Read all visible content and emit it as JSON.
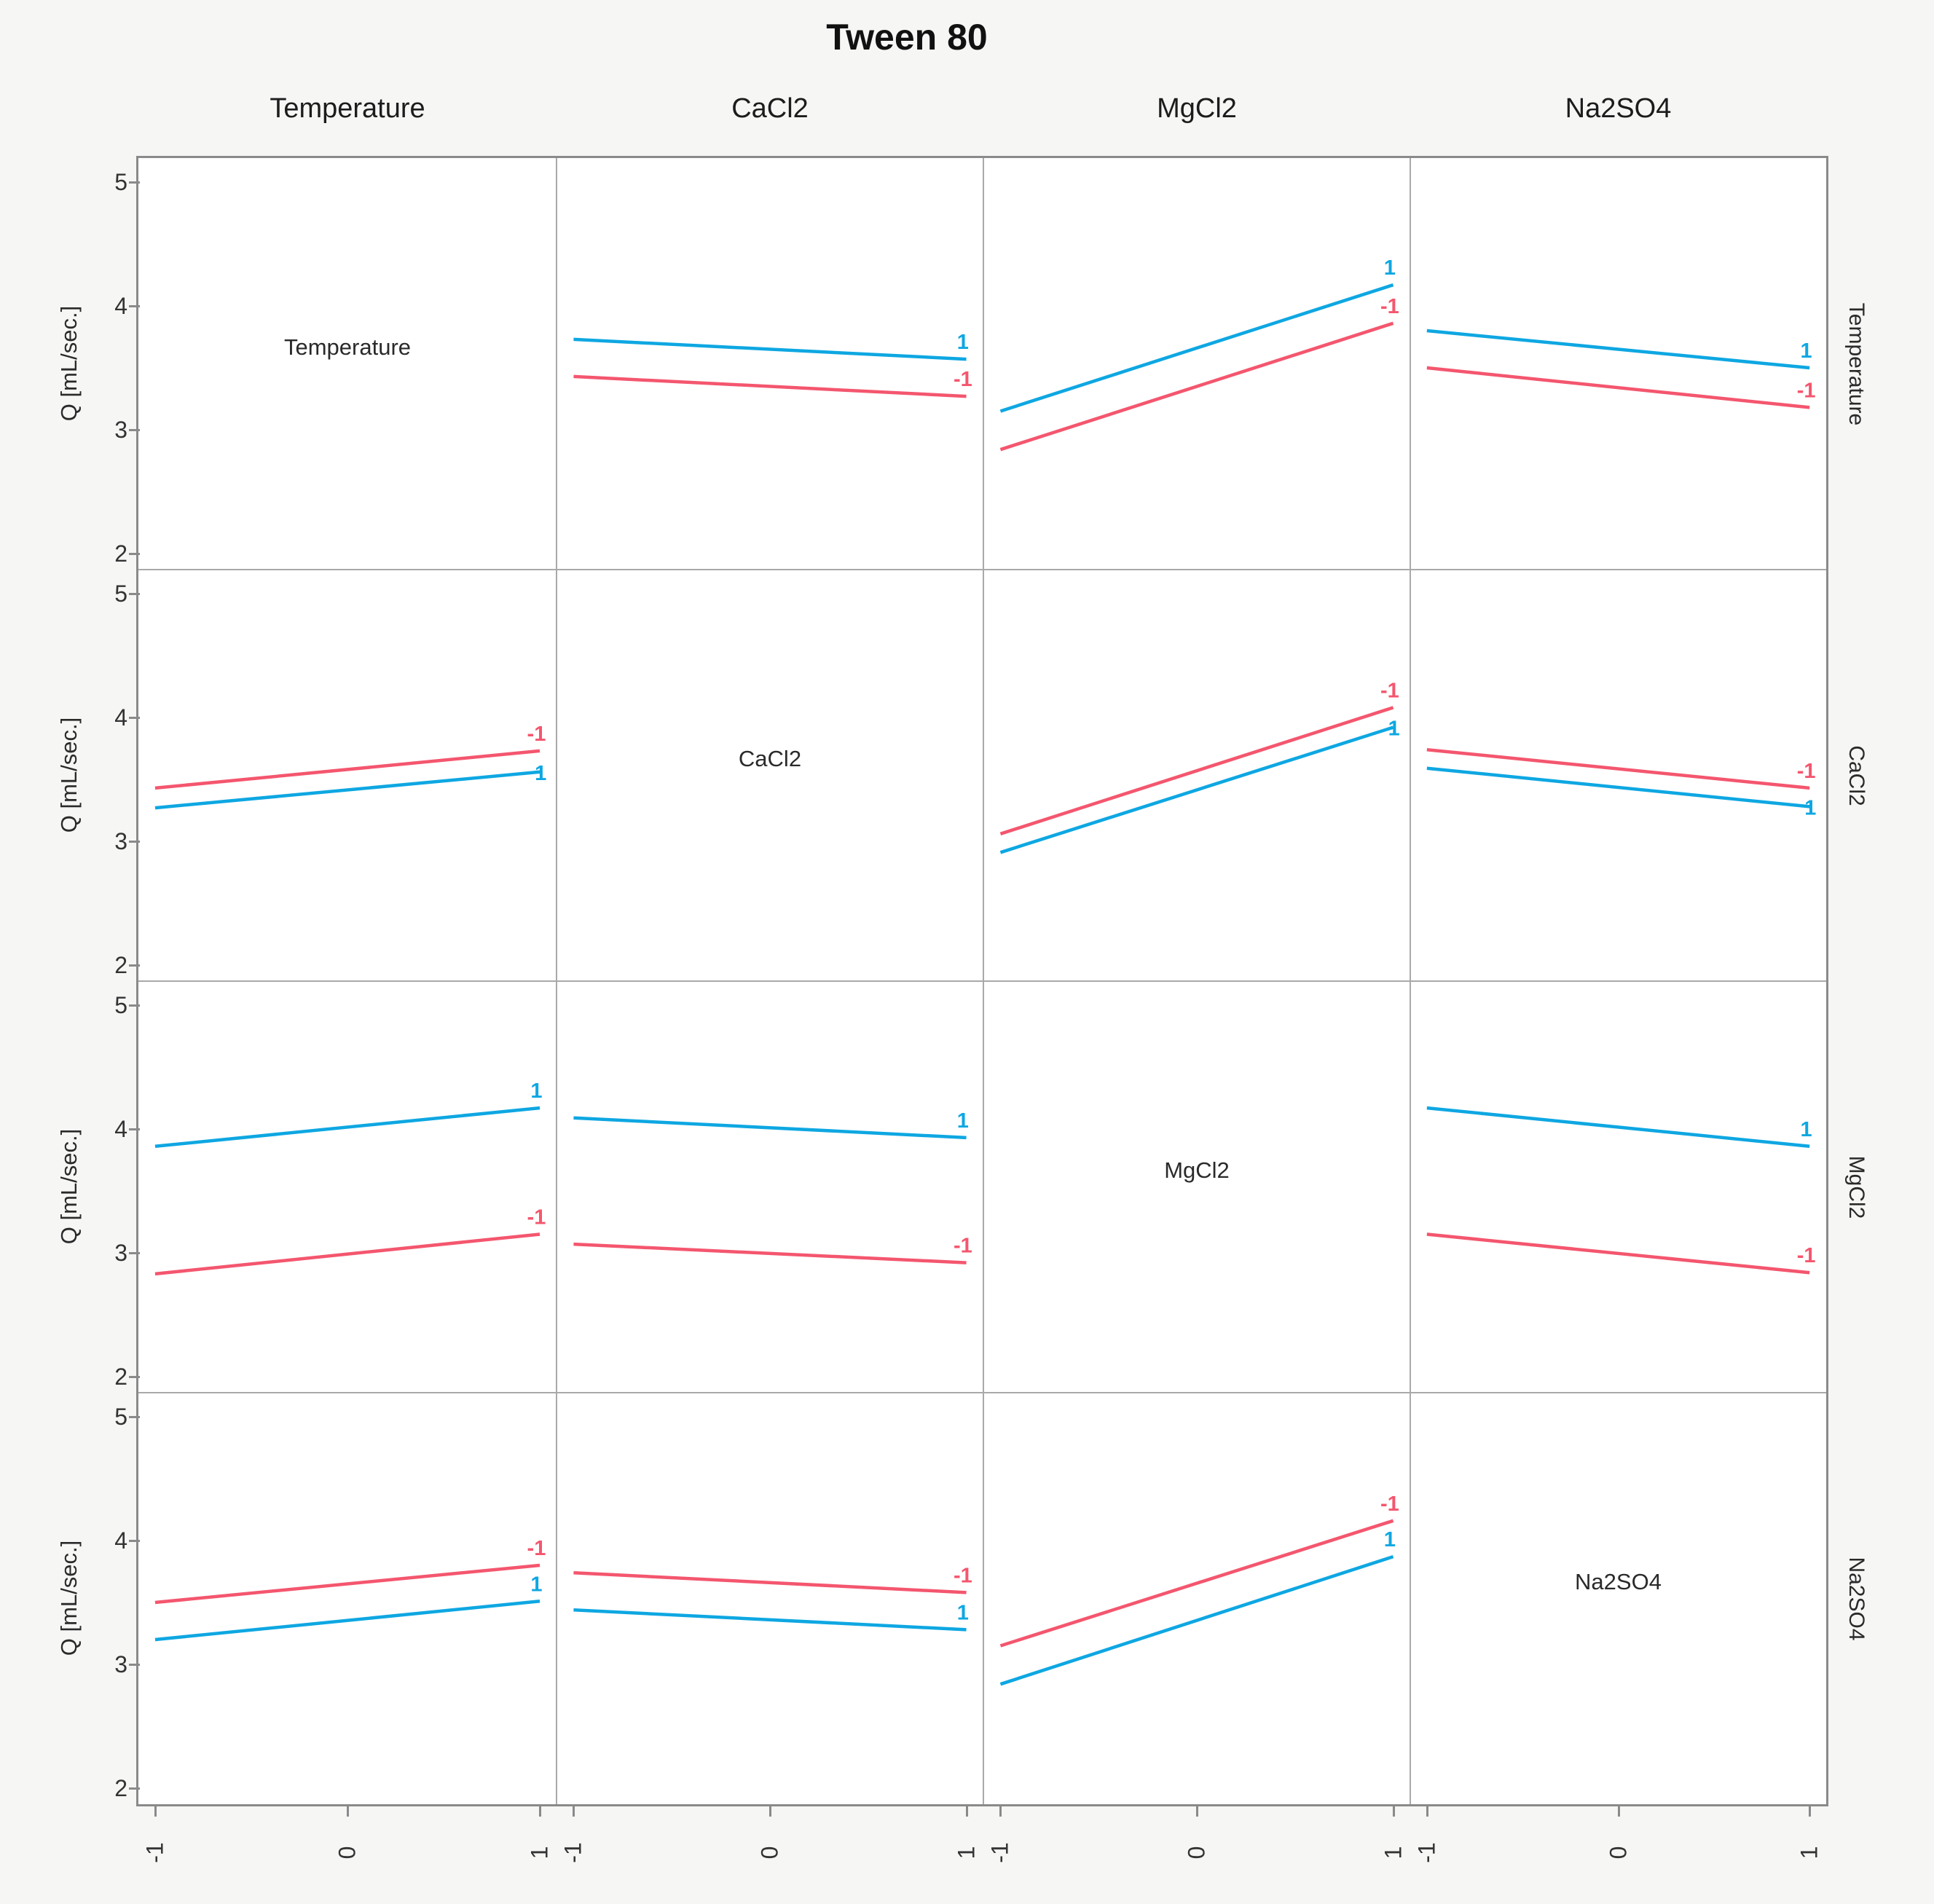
{
  "chart_data": {
    "type": "line",
    "subtype": "interaction-profile-matrix",
    "title": "Tween 80",
    "response_label": "Q [mL/sec.]",
    "factors": [
      "Temperature",
      "CaCl2",
      "MgCl2",
      "Na2SO4"
    ],
    "x_axis": {
      "ticks": [
        "-1",
        "0",
        "1"
      ],
      "range": [
        -1,
        1
      ]
    },
    "y_axis": {
      "ticks": [
        "5",
        "4",
        "3",
        "2"
      ],
      "range": [
        2,
        5
      ]
    },
    "legend_levels": {
      "pos": "1",
      "neg": "-1"
    },
    "colors": {
      "pos": "#0ea7e2",
      "neg": "#f4566e",
      "grid": "#a9a9a9",
      "frame": "#8a8a8a"
    },
    "cells": [
      {
        "row": "Temperature",
        "col": "CaCl2",
        "lines": [
          {
            "level": "1",
            "sign": "pos",
            "from": 3.73,
            "to": 3.57,
            "label_placement": "above"
          },
          {
            "level": "-1",
            "sign": "neg",
            "from": 3.43,
            "to": 3.27,
            "label_placement": "above"
          }
        ]
      },
      {
        "row": "Temperature",
        "col": "MgCl2",
        "lines": [
          {
            "level": "1",
            "sign": "pos",
            "from": 3.15,
            "to": 4.17,
            "label_placement": "above"
          },
          {
            "level": "-1",
            "sign": "neg",
            "from": 2.84,
            "to": 3.86,
            "label_placement": "above"
          }
        ]
      },
      {
        "row": "Temperature",
        "col": "Na2SO4",
        "lines": [
          {
            "level": "1",
            "sign": "pos",
            "from": 3.8,
            "to": 3.5,
            "label_placement": "above"
          },
          {
            "level": "-1",
            "sign": "neg",
            "from": 3.5,
            "to": 3.18,
            "label_placement": "above"
          }
        ]
      },
      {
        "row": "CaCl2",
        "col": "Temperature",
        "lines": [
          {
            "level": "-1",
            "sign": "neg",
            "from": 3.43,
            "to": 3.73,
            "label_placement": "above"
          },
          {
            "level": "1",
            "sign": "pos",
            "from": 3.27,
            "to": 3.56,
            "label_placement": "on"
          }
        ]
      },
      {
        "row": "CaCl2",
        "col": "MgCl2",
        "lines": [
          {
            "level": "-1",
            "sign": "neg",
            "from": 3.06,
            "to": 4.08,
            "label_placement": "above"
          },
          {
            "level": "1",
            "sign": "pos",
            "from": 2.91,
            "to": 3.92,
            "label_placement": "on"
          }
        ]
      },
      {
        "row": "CaCl2",
        "col": "Na2SO4",
        "lines": [
          {
            "level": "-1",
            "sign": "neg",
            "from": 3.74,
            "to": 3.43,
            "label_placement": "above"
          },
          {
            "level": "1",
            "sign": "pos",
            "from": 3.59,
            "to": 3.28,
            "label_placement": "on"
          }
        ]
      },
      {
        "row": "MgCl2",
        "col": "Temperature",
        "lines": [
          {
            "level": "1",
            "sign": "pos",
            "from": 3.86,
            "to": 4.17,
            "label_placement": "above"
          },
          {
            "level": "-1",
            "sign": "neg",
            "from": 2.83,
            "to": 3.15,
            "label_placement": "above"
          }
        ]
      },
      {
        "row": "MgCl2",
        "col": "CaCl2",
        "lines": [
          {
            "level": "1",
            "sign": "pos",
            "from": 4.09,
            "to": 3.93,
            "label_placement": "above"
          },
          {
            "level": "-1",
            "sign": "neg",
            "from": 3.07,
            "to": 2.92,
            "label_placement": "above"
          }
        ]
      },
      {
        "row": "MgCl2",
        "col": "Na2SO4",
        "lines": [
          {
            "level": "1",
            "sign": "pos",
            "from": 4.17,
            "to": 3.86,
            "label_placement": "above"
          },
          {
            "level": "-1",
            "sign": "neg",
            "from": 3.15,
            "to": 2.84,
            "label_placement": "above"
          }
        ]
      },
      {
        "row": "Na2SO4",
        "col": "Temperature",
        "lines": [
          {
            "level": "-1",
            "sign": "neg",
            "from": 3.5,
            "to": 3.8,
            "label_placement": "above"
          },
          {
            "level": "1",
            "sign": "pos",
            "from": 3.2,
            "to": 3.51,
            "label_placement": "above"
          }
        ]
      },
      {
        "row": "Na2SO4",
        "col": "CaCl2",
        "lines": [
          {
            "level": "-1",
            "sign": "neg",
            "from": 3.74,
            "to": 3.58,
            "label_placement": "above"
          },
          {
            "level": "1",
            "sign": "pos",
            "from": 3.44,
            "to": 3.28,
            "label_placement": "above"
          }
        ]
      },
      {
        "row": "Na2SO4",
        "col": "MgCl2",
        "lines": [
          {
            "level": "-1",
            "sign": "neg",
            "from": 3.15,
            "to": 4.16,
            "label_placement": "above"
          },
          {
            "level": "1",
            "sign": "pos",
            "from": 2.84,
            "to": 3.87,
            "label_placement": "above"
          }
        ]
      }
    ]
  }
}
